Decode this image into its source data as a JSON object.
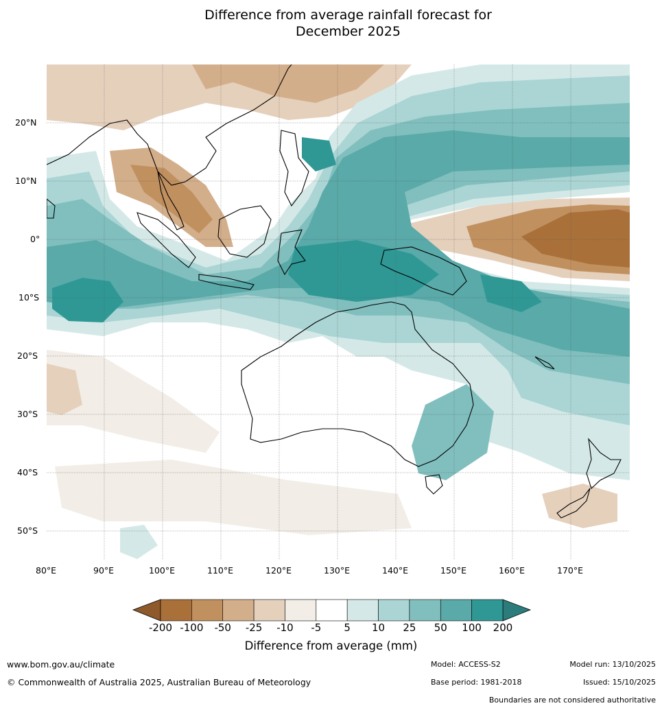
{
  "title_line1": "Difference from average rainfall forecast for",
  "title_line2": "December 2025",
  "lat_labels": [
    "20°N",
    "10°N",
    "0°",
    "10°S",
    "20°S",
    "30°S",
    "40°S",
    "50°S"
  ],
  "lon_labels": [
    "80°E",
    "90°E",
    "100°E",
    "110°E",
    "120°E",
    "130°E",
    "140°E",
    "150°E",
    "160°E",
    "170°E"
  ],
  "colorbar": {
    "labels": [
      "-200",
      "-100",
      "-50",
      "-25",
      "-10",
      "-5",
      "5",
      "10",
      "25",
      "50",
      "100",
      "200"
    ],
    "colors": [
      "#a9703a",
      "#c1905f",
      "#d3ae8a",
      "#e5d0bc",
      "#f2ede6",
      "#ffffff",
      "#d4e9e7",
      "#aad5d4",
      "#80bfbe",
      "#59aaa9",
      "#2f9895"
    ],
    "under_color": "#8f5a2b",
    "over_color": "#2b7c7a",
    "title": "Difference from average (mm)"
  },
  "footer": {
    "url": "www.bom.gov.au/climate",
    "copyright": "© Commonwealth of Australia 2025, Australian Bureau of Meteorology",
    "model": "Model: ACCESS-S2",
    "base_period": "Base period: 1981-2018",
    "model_run": "Model run: 13/10/2025",
    "issued": "Issued: 15/10/2025",
    "disclaimer": "Boundaries are not considered authoritative"
  }
}
